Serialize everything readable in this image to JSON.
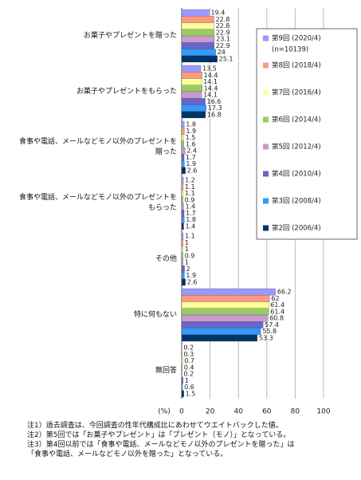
{
  "chart_data": {
    "type": "bar",
    "orientation": "horizontal",
    "categories": [
      "お菓子やプレゼントを贈った",
      "お菓子やプレゼントをもらった",
      "食事や電話、メールなどモノ以外のプレゼントを\n贈った",
      "食事や電話、メールなどモノ以外のプレゼントを\nもらった",
      "その他",
      "特に何もない",
      "無回答"
    ],
    "series": [
      {
        "name": "第9回 (2020/4)",
        "color": "#9999ff",
        "values": [
          19.4,
          13.5,
          1.8,
          1.2,
          1.1,
          66.2,
          0.2
        ]
      },
      {
        "name": "第8回 (2018/4)",
        "color": "#ff9980",
        "values": [
          22.8,
          14.4,
          1.9,
          1.1,
          1.0,
          62.0,
          0.3
        ]
      },
      {
        "name": "第7回 (2016/4)",
        "color": "#ffff99",
        "values": [
          22.8,
          14.1,
          1.5,
          1.1,
          1.0,
          61.4,
          0.7
        ]
      },
      {
        "name": "第6回 (2014/4)",
        "color": "#99cc66",
        "values": [
          22.9,
          14.4,
          1.6,
          0.9,
          0.9,
          61.4,
          0.4
        ]
      },
      {
        "name": "第5回 (2012/4)",
        "color": "#cc99cc",
        "values": [
          23.1,
          14.1,
          2.4,
          1.4,
          1.0,
          60.8,
          0.2
        ]
      },
      {
        "name": "第4回 (2010/4)",
        "color": "#6666cc",
        "values": [
          22.9,
          16.6,
          1.7,
          1.7,
          2.0,
          57.4,
          1.0
        ]
      },
      {
        "name": "第3回 (2008/4)",
        "color": "#3399ff",
        "values": [
          24.0,
          17.3,
          1.9,
          1.8,
          1.9,
          55.8,
          0.6
        ]
      },
      {
        "name": "第2回 (2006/4)",
        "color": "#003366",
        "values": [
          25.1,
          16.8,
          2.6,
          1.4,
          2.6,
          53.3,
          1.5
        ]
      }
    ],
    "legend_note": "(n=10139)",
    "x_label": "(%)",
    "xlim": [
      0,
      100
    ],
    "xticks": [
      0,
      20,
      40,
      60,
      80,
      100
    ],
    "grid": true,
    "legend_position": "right",
    "notes": [
      "注1）過去調査は、今回調査の性年代構成比にあわせてウエイトバックした値。",
      "注2）第5回では「お菓子やプレゼント」は「プレゼント（モノ）」となっている。",
      "注3）第4回以前では「食事や電話、メールなどモノ以外のプレゼントを贈った」は\n「食事や電話、メールなどモノ以外を贈った」となっている。"
    ]
  }
}
